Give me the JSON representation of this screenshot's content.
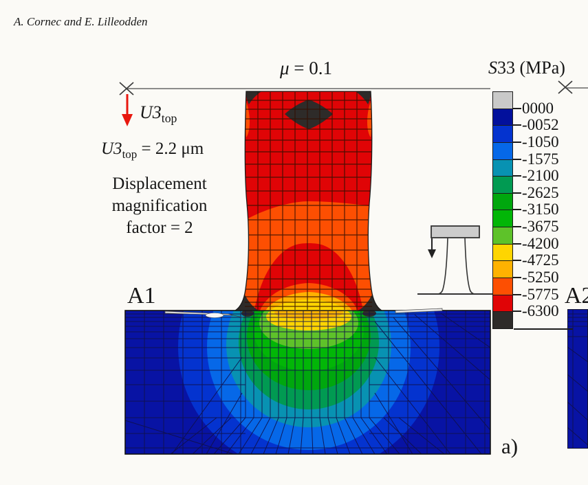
{
  "header": {
    "authors": "A. Cornec and E. Lilleodden"
  },
  "figure": {
    "title": {
      "italic": "μ",
      "rest": " = 0.1"
    },
    "panel_label": "a)",
    "region_label_left": "A1",
    "region_label_right": "A2",
    "annotations": {
      "u3_arrow_label": {
        "italic": "U3",
        "sub": "top"
      },
      "u3_value": {
        "italic": "U3",
        "sub": "top",
        "rest": " = 2.2 μm"
      },
      "magnification_note": [
        "Displacement",
        "magnification",
        "factor = 2"
      ]
    }
  },
  "legend": {
    "title": {
      "italic": "S",
      "rest": "33 (MPa)"
    },
    "tick_labels": [
      "0000",
      "-0052",
      "-1050",
      "-1575",
      "-2100",
      "-2625",
      "-3150",
      "-3675",
      "-4200",
      "-4725",
      "-5250",
      "-5775",
      "-6300"
    ],
    "segment_colors": [
      "#c9c9c9",
      "#02109c",
      "#0433cf",
      "#0668e8",
      "#0892b2",
      "#019a52",
      "#00a70e",
      "#02b607",
      "#5ec22a",
      "#fed501",
      "#feb201",
      "#fd4f02",
      "#e00406",
      "#2e2b29"
    ]
  },
  "palette": {
    "substrate_blue": "#0813a4",
    "pillar_red": "#e00406",
    "pillar_orange": "#fd4f02",
    "arrow_red": "#e8170e",
    "dark_overflow": "#2e2b29",
    "schematic_gray": "#cccccc"
  }
}
